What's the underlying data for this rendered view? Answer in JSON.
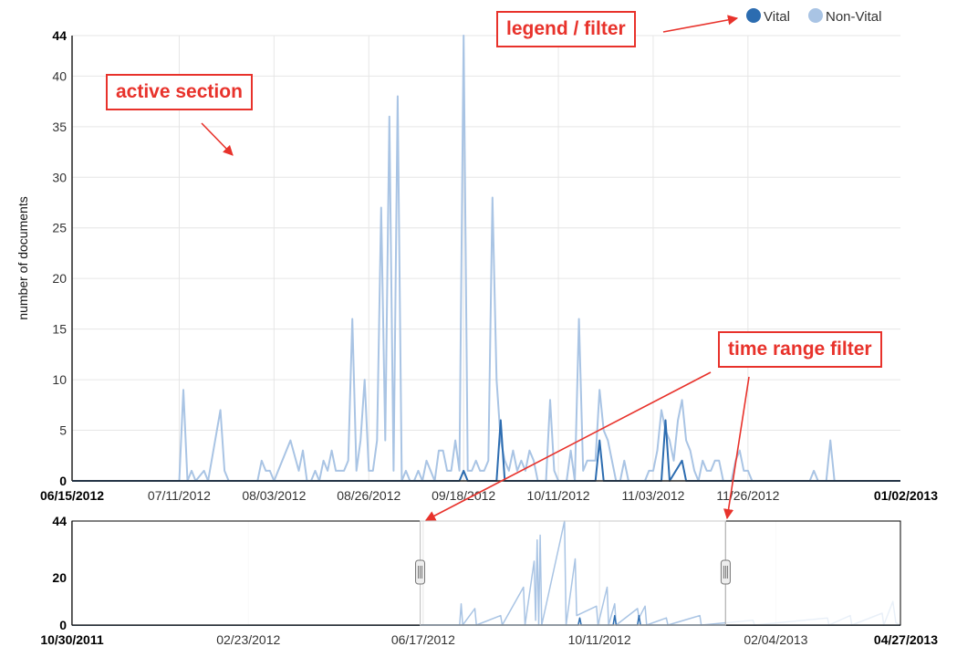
{
  "chart_data": [
    {
      "type": "line",
      "ylabel": "number of documents",
      "ylim": [
        0,
        44
      ],
      "y_ticks": [
        "0",
        "5",
        "10",
        "15",
        "20",
        "25",
        "30",
        "35",
        "40",
        "44"
      ],
      "x_range": [
        "06/15/2012",
        "01/02/2013"
      ],
      "x_ticks": [
        "06/15/2012",
        "07/11/2012",
        "08/03/2012",
        "08/26/2012",
        "09/18/2012",
        "10/11/2012",
        "11/03/2012",
        "11/26/2012",
        "01/02/2013"
      ],
      "grid": true,
      "legend_position": "top-right",
      "series": [
        {
          "name": "Vital",
          "color": "#2c6cb0",
          "points": [
            [
              "06/15/2012",
              0
            ],
            [
              "09/17/2012",
              0
            ],
            [
              "09/18/2012",
              1
            ],
            [
              "09/19/2012",
              0
            ],
            [
              "09/26/2012",
              0
            ],
            [
              "09/27/2012",
              6
            ],
            [
              "09/28/2012",
              0
            ],
            [
              "10/20/2012",
              0
            ],
            [
              "10/21/2012",
              4
            ],
            [
              "10/22/2012",
              0
            ],
            [
              "11/05/2012",
              0
            ],
            [
              "11/06/2012",
              6
            ],
            [
              "11/07/2012",
              0
            ],
            [
              "11/10/2012",
              2
            ],
            [
              "11/11/2012",
              0
            ],
            [
              "01/02/2013",
              0
            ]
          ]
        },
        {
          "name": "Non-Vital",
          "color": "#a9c4e4",
          "points": [
            [
              "06/15/2012",
              0
            ],
            [
              "07/11/2012",
              0
            ],
            [
              "07/12/2012",
              9
            ],
            [
              "07/13/2012",
              0
            ],
            [
              "07/14/2012",
              1
            ],
            [
              "07/15/2012",
              0
            ],
            [
              "07/17/2012",
              1
            ],
            [
              "07/18/2012",
              0
            ],
            [
              "07/21/2012",
              7
            ],
            [
              "07/22/2012",
              1
            ],
            [
              "07/23/2012",
              0
            ],
            [
              "07/30/2012",
              0
            ],
            [
              "07/31/2012",
              2
            ],
            [
              "08/01/2012",
              1
            ],
            [
              "08/02/2012",
              1
            ],
            [
              "08/03/2012",
              0
            ],
            [
              "08/07/2012",
              4
            ],
            [
              "08/09/2012",
              1
            ],
            [
              "08/10/2012",
              3
            ],
            [
              "08/11/2012",
              0
            ],
            [
              "08/12/2012",
              0
            ],
            [
              "08/13/2012",
              1
            ],
            [
              "08/14/2012",
              0
            ],
            [
              "08/15/2012",
              2
            ],
            [
              "08/16/2012",
              1
            ],
            [
              "08/17/2012",
              3
            ],
            [
              "08/18/2012",
              1
            ],
            [
              "08/19/2012",
              1
            ],
            [
              "08/20/2012",
              1
            ],
            [
              "08/21/2012",
              2
            ],
            [
              "08/22/2012",
              16
            ],
            [
              "08/23/2012",
              1
            ],
            [
              "08/24/2012",
              4
            ],
            [
              "08/25/2012",
              10
            ],
            [
              "08/26/2012",
              1
            ],
            [
              "08/27/2012",
              1
            ],
            [
              "08/28/2012",
              4
            ],
            [
              "08/29/2012",
              27
            ],
            [
              "08/30/2012",
              4
            ],
            [
              "08/31/2012",
              36
            ],
            [
              "09/01/2012",
              1
            ],
            [
              "09/02/2012",
              38
            ],
            [
              "09/03/2012",
              0
            ],
            [
              "09/04/2012",
              1
            ],
            [
              "09/05/2012",
              0
            ],
            [
              "09/06/2012",
              0
            ],
            [
              "09/07/2012",
              1
            ],
            [
              "09/08/2012",
              0
            ],
            [
              "09/09/2012",
              2
            ],
            [
              "09/10/2012",
              1
            ],
            [
              "09/11/2012",
              0
            ],
            [
              "09/12/2012",
              3
            ],
            [
              "09/13/2012",
              3
            ],
            [
              "09/14/2012",
              1
            ],
            [
              "09/15/2012",
              1
            ],
            [
              "09/16/2012",
              4
            ],
            [
              "09/17/2012",
              1
            ],
            [
              "09/18/2012",
              44
            ],
            [
              "09/19/2012",
              1
            ],
            [
              "09/20/2012",
              1
            ],
            [
              "09/21/2012",
              2
            ],
            [
              "09/22/2012",
              1
            ],
            [
              "09/23/2012",
              1
            ],
            [
              "09/24/2012",
              2
            ],
            [
              "09/25/2012",
              28
            ],
            [
              "09/26/2012",
              10
            ],
            [
              "09/27/2012",
              4
            ],
            [
              "09/28/2012",
              2
            ],
            [
              "09/29/2012",
              1
            ],
            [
              "09/30/2012",
              3
            ],
            [
              "10/01/2012",
              1
            ],
            [
              "10/02/2012",
              2
            ],
            [
              "10/03/2012",
              1
            ],
            [
              "10/04/2012",
              3
            ],
            [
              "10/05/2012",
              2
            ],
            [
              "10/06/2012",
              0
            ],
            [
              "10/07/2012",
              0
            ],
            [
              "10/08/2012",
              0
            ],
            [
              "10/09/2012",
              8
            ],
            [
              "10/10/2012",
              1
            ],
            [
              "10/11/2012",
              0
            ],
            [
              "10/13/2012",
              0
            ],
            [
              "10/14/2012",
              3
            ],
            [
              "10/15/2012",
              0
            ],
            [
              "10/16/2012",
              16
            ],
            [
              "10/17/2012",
              1
            ],
            [
              "10/18/2012",
              2
            ],
            [
              "10/19/2012",
              2
            ],
            [
              "10/20/2012",
              2
            ],
            [
              "10/21/2012",
              9
            ],
            [
              "10/22/2012",
              5
            ],
            [
              "10/23/2012",
              4
            ],
            [
              "10/24/2012",
              2
            ],
            [
              "10/25/2012",
              0
            ],
            [
              "10/26/2012",
              0
            ],
            [
              "10/27/2012",
              2
            ],
            [
              "10/28/2012",
              0
            ],
            [
              "10/29/2012",
              0
            ],
            [
              "10/30/2012",
              0
            ],
            [
              "11/01/2012",
              0
            ],
            [
              "11/02/2012",
              1
            ],
            [
              "11/03/2012",
              1
            ],
            [
              "11/04/2012",
              3
            ],
            [
              "11/05/2012",
              7
            ],
            [
              "11/06/2012",
              5
            ],
            [
              "11/07/2012",
              4
            ],
            [
              "11/08/2012",
              2
            ],
            [
              "11/09/2012",
              6
            ],
            [
              "11/10/2012",
              8
            ],
            [
              "11/11/2012",
              4
            ],
            [
              "11/12/2012",
              3
            ],
            [
              "11/13/2012",
              1
            ],
            [
              "11/14/2012",
              0
            ],
            [
              "11/15/2012",
              2
            ],
            [
              "11/16/2012",
              1
            ],
            [
              "11/17/2012",
              1
            ],
            [
              "11/18/2012",
              2
            ],
            [
              "11/19/2012",
              2
            ],
            [
              "11/20/2012",
              0
            ],
            [
              "11/21/2012",
              0
            ],
            [
              "11/22/2012",
              0
            ],
            [
              "11/23/2012",
              2
            ],
            [
              "11/24/2012",
              3
            ],
            [
              "11/25/2012",
              1
            ],
            [
              "11/26/2012",
              1
            ],
            [
              "11/27/2012",
              0
            ],
            [
              "12/11/2012",
              0
            ],
            [
              "12/12/2012",
              1
            ],
            [
              "12/13/2012",
              0
            ],
            [
              "12/15/2012",
              0
            ],
            [
              "12/16/2012",
              4
            ],
            [
              "12/17/2012",
              0
            ],
            [
              "01/02/2013",
              0
            ]
          ]
        }
      ]
    },
    {
      "type": "line",
      "role": "time range navigator",
      "ylim": [
        0,
        44
      ],
      "y_ticks": [
        "0",
        "20",
        "44"
      ],
      "x_range": [
        "10/30/2011",
        "04/27/2013"
      ],
      "x_ticks": [
        "10/30/2011",
        "02/23/2012",
        "06/17/2012",
        "10/11/2012",
        "02/04/2013",
        "04/27/2013"
      ],
      "selected_range": [
        "06/15/2012",
        "01/02/2013"
      ],
      "series": [
        {
          "name": "Vital",
          "color": "#2c6cb0",
          "points": [
            [
              "10/30/2011",
              0
            ],
            [
              "09/27/2012",
              0
            ],
            [
              "09/28/2012",
              3
            ],
            [
              "09/29/2012",
              0
            ],
            [
              "10/20/2012",
              0
            ],
            [
              "10/21/2012",
              4
            ],
            [
              "10/22/2012",
              0
            ],
            [
              "11/05/2012",
              0
            ],
            [
              "11/06/2012",
              4
            ],
            [
              "11/07/2012",
              0
            ],
            [
              "04/27/2013",
              0
            ]
          ]
        },
        {
          "name": "Non-Vital",
          "color": "#a9c4e4",
          "points": [
            [
              "10/30/2011",
              0
            ],
            [
              "07/11/2012",
              0
            ],
            [
              "07/12/2012",
              9
            ],
            [
              "07/13/2012",
              0
            ],
            [
              "07/21/2012",
              7
            ],
            [
              "07/22/2012",
              0
            ],
            [
              "08/07/2012",
              4
            ],
            [
              "08/08/2012",
              0
            ],
            [
              "08/22/2012",
              16
            ],
            [
              "08/23/2012",
              0
            ],
            [
              "08/29/2012",
              27
            ],
            [
              "08/30/2012",
              2
            ],
            [
              "08/31/2012",
              36
            ],
            [
              "09/01/2012",
              0
            ],
            [
              "09/02/2012",
              38
            ],
            [
              "09/03/2012",
              0
            ],
            [
              "09/18/2012",
              44
            ],
            [
              "09/19/2012",
              0
            ],
            [
              "09/25/2012",
              28
            ],
            [
              "09/26/2012",
              4
            ],
            [
              "10/09/2012",
              8
            ],
            [
              "10/10/2012",
              0
            ],
            [
              "10/16/2012",
              16
            ],
            [
              "10/17/2012",
              0
            ],
            [
              "10/21/2012",
              9
            ],
            [
              "10/22/2012",
              0
            ],
            [
              "11/05/2012",
              7
            ],
            [
              "11/06/2012",
              3
            ],
            [
              "11/10/2012",
              8
            ],
            [
              "11/11/2012",
              0
            ],
            [
              "11/24/2012",
              3
            ],
            [
              "11/25/2012",
              0
            ],
            [
              "12/16/2012",
              4
            ],
            [
              "12/17/2012",
              0
            ],
            [
              "01/20/2013",
              2
            ],
            [
              "01/21/2013",
              0
            ],
            [
              "03/10/2013",
              3
            ],
            [
              "03/11/2013",
              0
            ],
            [
              "03/25/2013",
              4
            ],
            [
              "03/26/2013",
              0
            ],
            [
              "04/15/2013",
              5
            ],
            [
              "04/16/2013",
              0
            ],
            [
              "04/22/2013",
              10
            ],
            [
              "04/24/2013",
              1
            ],
            [
              "04/27/2013",
              0
            ]
          ]
        }
      ]
    }
  ],
  "legend": {
    "vital_label": "Vital",
    "nonvital_label": "Non-Vital"
  },
  "annotations": {
    "legend_filter": "legend / filter",
    "active_section": "active section",
    "time_range_filter": "time range filter"
  },
  "colors": {
    "annotation": "#e8322b",
    "vital": "#2c6cb0",
    "nonvital": "#a9c4e4",
    "grid": "#e6e6e6"
  }
}
